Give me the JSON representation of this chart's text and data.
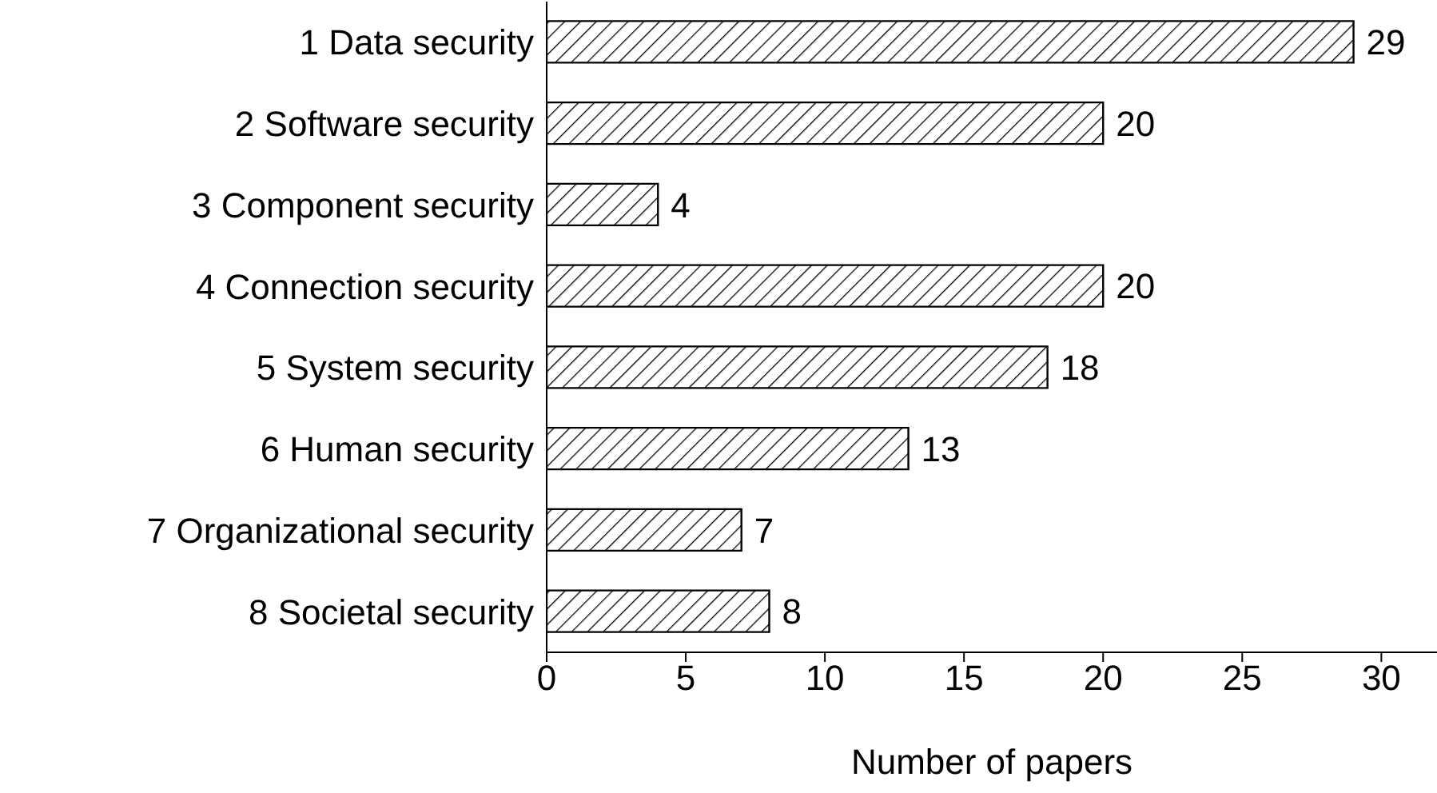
{
  "chart_data": {
    "type": "bar",
    "orientation": "horizontal",
    "xlabel": "Number of papers",
    "categories": [
      "1 Data security",
      "2 Software security",
      "3 Component security",
      "4 Connection security",
      "5 System security",
      "6 Human security",
      "7 Organizational security",
      "8 Societal security"
    ],
    "values": [
      29,
      20,
      4,
      20,
      18,
      13,
      7,
      8
    ],
    "color": "#000000",
    "xlim": [
      0,
      32
    ],
    "xticks": [
      0,
      5,
      10,
      15,
      20,
      25,
      30
    ],
    "data_labels": true,
    "grid": false
  }
}
